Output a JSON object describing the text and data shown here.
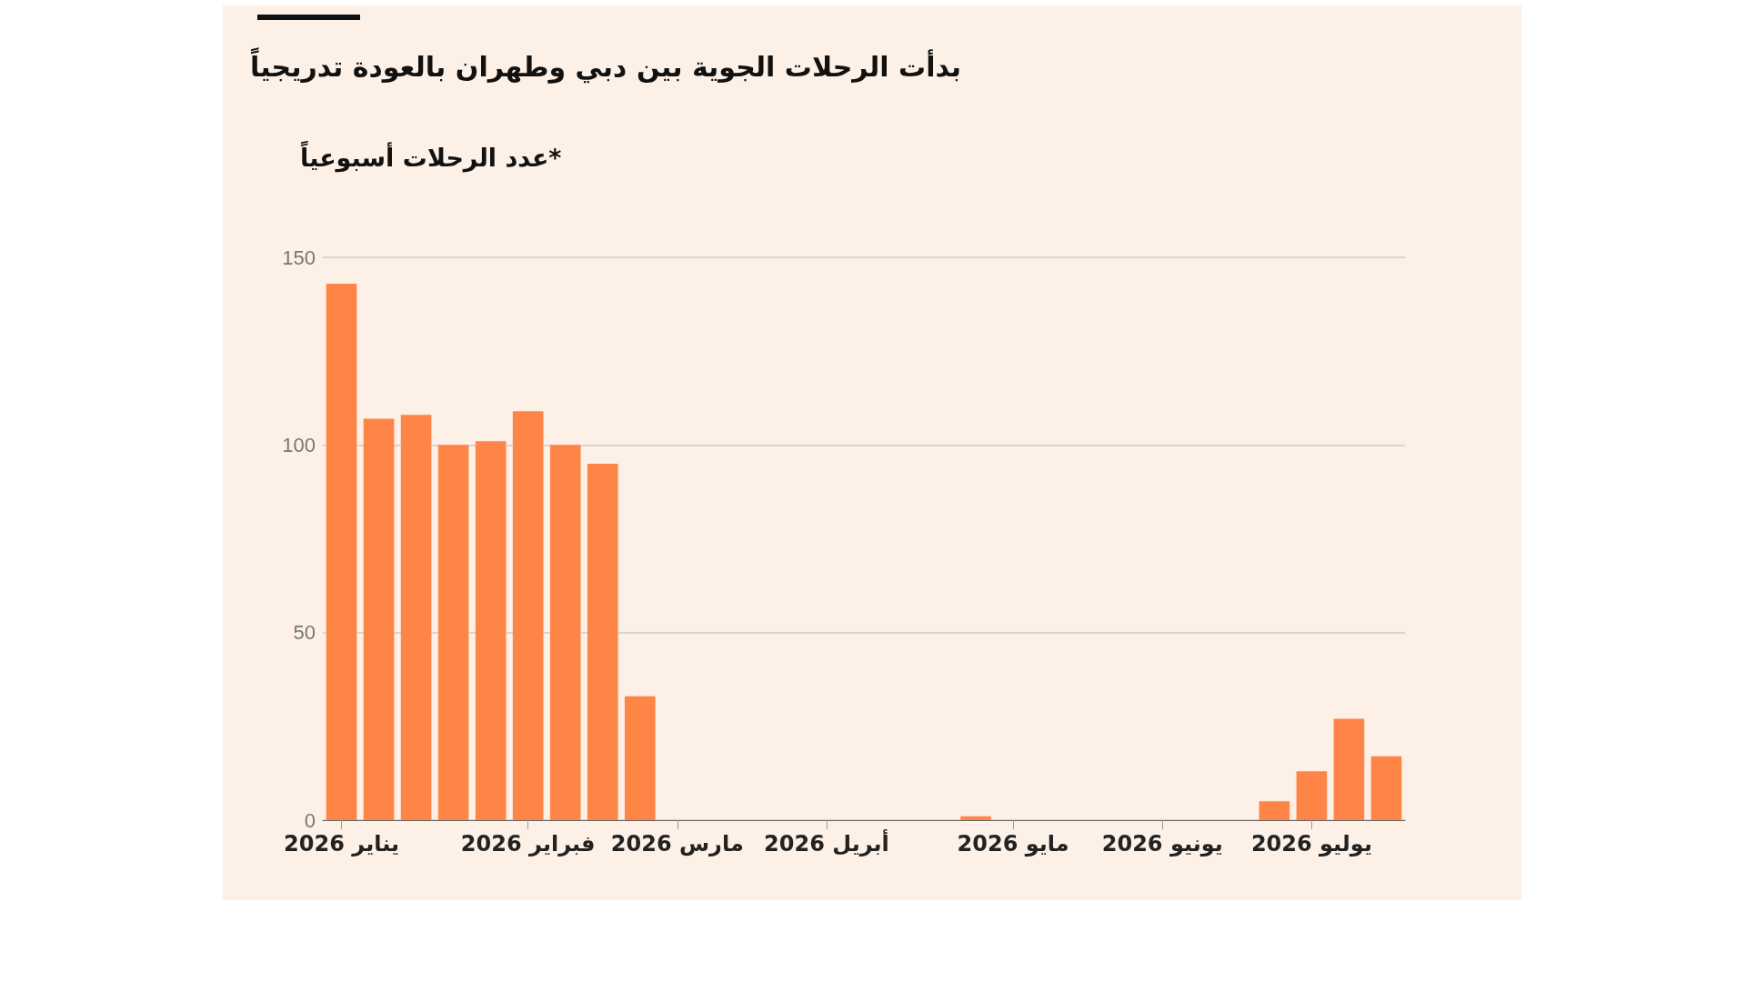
{
  "chart_data": {
    "type": "bar",
    "title": "بدأت الرحلات الجوية بين دبي وطهران بالعودة تدريجياً",
    "subtitle": "*عدد الرحلات أسبوعياً",
    "categories": [
      "يناير 2026",
      null,
      null,
      null,
      null,
      "فبراير 2026",
      null,
      null,
      null,
      "مارس 2026",
      null,
      null,
      null,
      "أبريل 2026",
      null,
      null,
      null,
      null,
      "مايو 2026",
      null,
      null,
      null,
      "يونيو 2026",
      null,
      null,
      null,
      "يوليو 2026",
      null,
      null
    ],
    "values": [
      143,
      107,
      108,
      100,
      101,
      109,
      100,
      95,
      33,
      0,
      0,
      0,
      0,
      0,
      0,
      0,
      0,
      1,
      0,
      0,
      0,
      0,
      0,
      0,
      0,
      5,
      13,
      27,
      17
    ],
    "color": "#ff8547",
    "ylim": [
      0,
      150
    ],
    "yticks": [
      0,
      50,
      100,
      150
    ],
    "grid": "y"
  }
}
